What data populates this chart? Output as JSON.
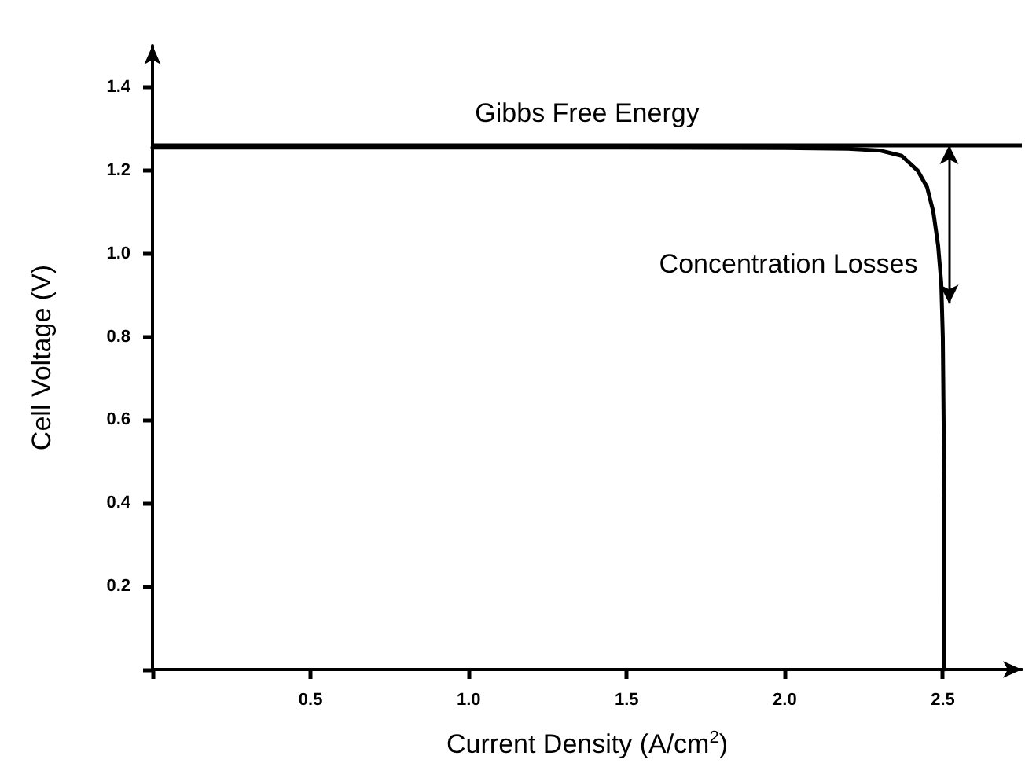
{
  "chart_data": {
    "type": "line",
    "xlabel": "Current Density (A/cm$^{2}$)",
    "ylabel": "Cell Voltage (V)",
    "x": [
      0,
      0.5,
      1.0,
      1.5,
      2.0,
      2.2,
      2.3,
      2.37,
      2.42,
      2.45,
      2.47,
      2.485,
      2.495,
      2.5,
      2.505,
      2.505
    ],
    "series": [
      {
        "color": "#000000",
        "values": [
          1.255,
          1.255,
          1.255,
          1.255,
          1.254,
          1.252,
          1.248,
          1.235,
          1.2,
          1.16,
          1.1,
          1.02,
          0.93,
          0.8,
          0.4,
          0
        ]
      }
    ],
    "xlim": [
      0,
      2.75
    ],
    "xticks": [
      {
        "value": 0,
        "label": null
      },
      0.5,
      {
        "value": 1,
        "label": "1.0"
      },
      1.5,
      {
        "value": 2,
        "label": "2.0"
      },
      2.5
    ],
    "ylim": [
      0,
      1.5
    ],
    "yticks": [
      {
        "value": 0,
        "label": null
      },
      0.2,
      0.4,
      0.6,
      0.8,
      {
        "value": 1,
        "label": "1.0"
      },
      1.2,
      1.4
    ],
    "ref_lines": [
      {
        "axis": "y",
        "value": 1.26,
        "label": "Gibbs Free Energy",
        "color": "#000000"
      }
    ],
    "annotations": [
      {
        "text": "Concentration Losses",
        "x": 2.52,
        "y": 0.88
      }
    ],
    "grid": false,
    "marker": "none",
    "line_style": "solid"
  }
}
